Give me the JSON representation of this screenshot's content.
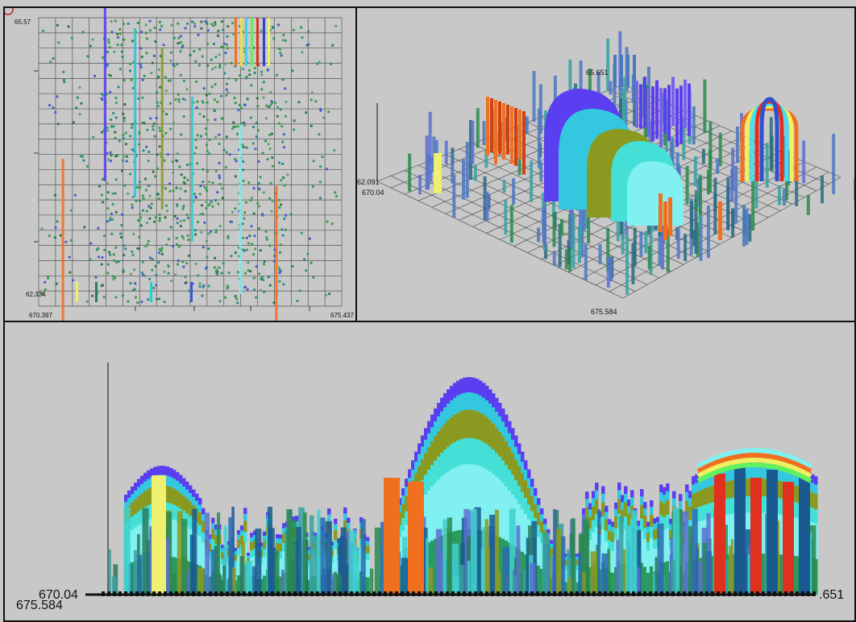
{
  "panels": {
    "scatter": {
      "y_max_label": "65.57",
      "y_min_label": "62.334",
      "x_min_label": "670.397",
      "x_max_label": "675.437"
    },
    "perspective": {
      "top_label": "65.651",
      "z_label": "62.091",
      "x_min_label": "670.04",
      "x_max_label": "675.584"
    },
    "side": {
      "left_label_top": "670.04",
      "left_label_bottom": "675.584",
      "right_label": ".651"
    }
  },
  "chart_data": [
    {
      "type": "scatter",
      "view": "top-down",
      "xlim": [
        670.397,
        675.437
      ],
      "ylim": [
        62.334,
        65.57
      ],
      "grid": true,
      "columns": [
        {
          "x": 671.5,
          "color": "#5a3ff0"
        },
        {
          "x": 672.0,
          "color": "#33c0d8"
        },
        {
          "x": 672.45,
          "color": "#8a9a20"
        },
        {
          "x": 672.95,
          "color": "#33d0d0"
        },
        {
          "x": 673.75,
          "color": "#7ef0f0"
        },
        {
          "x": 670.8,
          "color": "#f07020"
        },
        {
          "x": 674.35,
          "color": "#f07020"
        }
      ]
    },
    {
      "type": "bar",
      "view": "3d-perspective",
      "xlim": [
        670.04,
        675.584
      ],
      "zlabel_top": 65.651,
      "zlabel_bottom": 62.091
    },
    {
      "type": "bar",
      "view": "side-profile",
      "xlim": [
        670.04,
        675.584
      ]
    }
  ]
}
